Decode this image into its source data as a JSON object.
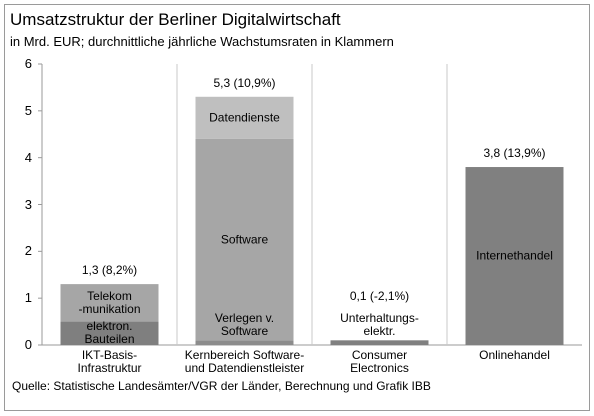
{
  "chart_data": {
    "type": "stacked_bar",
    "title": "Umsatzstruktur der Berliner Digitalwirtschaft",
    "subtitle": "in Mrd. EUR; durchnittliche jährliche Wachstumsraten in Klammern",
    "source": "Quelle: Statistische Landesämter/VGR der Länder, Berechnung und Grafik IBB",
    "categories": [
      "IKT-Basis-\nInfrastruktur",
      "Kernbereich Software-\nund Datendienstleister",
      "Consumer\nElectronics",
      "Onlinehandel"
    ],
    "series": [
      {
        "name": "elektron.\nBauteilen",
        "color": "#7f7f7f",
        "values": [
          0.5,
          null,
          null,
          null
        ]
      },
      {
        "name": "Telekom\n-munikation",
        "color": "#a6a6a6",
        "values": [
          0.8,
          null,
          null,
          null
        ]
      },
      {
        "name": "Verlegen v.\nSoftware",
        "color": "#8c8c8c",
        "values": [
          null,
          0.1,
          null,
          null
        ]
      },
      {
        "name": "Software",
        "color": "#a6a6a6",
        "values": [
          null,
          4.3,
          null,
          null
        ]
      },
      {
        "name": "Datendienste",
        "color": "#bfbfbf",
        "values": [
          null,
          0.9,
          null,
          null
        ]
      },
      {
        "name": "Unterhaltungs-\nelektr.",
        "color": "#808080",
        "values": [
          null,
          null,
          0.1,
          null
        ]
      },
      {
        "name": "Internethandel",
        "color": "#808080",
        "values": [
          null,
          null,
          null,
          3.8
        ]
      }
    ],
    "totals": {
      "values": [
        1.3,
        5.3,
        0.1,
        3.8
      ],
      "value_labels": [
        "1,3 (8,2%)",
        "5,3 (10,9%)",
        "0,1 (-2,1%)",
        "3,8 (13,9%)"
      ]
    },
    "ylim": [
      0,
      6
    ],
    "yticks": [
      0,
      1,
      2,
      3,
      4,
      5,
      6
    ],
    "grid": false
  }
}
